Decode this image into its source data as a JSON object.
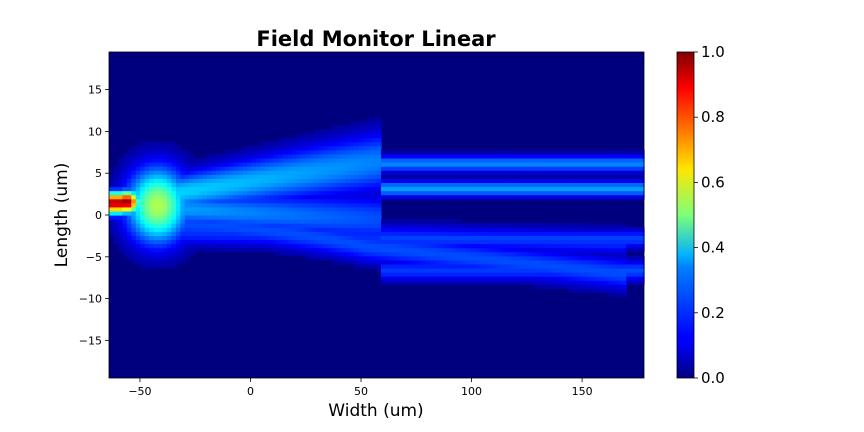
{
  "chart_data": {
    "type": "heatmap",
    "title": "Field Monitor Linear",
    "xlabel": "Width (um)",
    "ylabel": "Length (um)",
    "xlim": [
      -64,
      178
    ],
    "ylim": [
      -19.5,
      19.5
    ],
    "xticks": [
      -50,
      0,
      50,
      100,
      150
    ],
    "xtick_labels": [
      "−50",
      "0",
      "50",
      "100",
      "150"
    ],
    "yticks": [
      15,
      10,
      5,
      0,
      -5,
      -10,
      -15
    ],
    "ytick_labels": [
      "15",
      "10",
      "5",
      "0",
      "−5",
      "−10",
      "−15"
    ],
    "colorbar": {
      "colormap": "jet",
      "range": [
        0.0,
        1.0
      ],
      "ticks": [
        0.0,
        0.2,
        0.4,
        0.6,
        0.8,
        1.0
      ],
      "tick_labels": [
        "0.0",
        "0.2",
        "0.4",
        "0.6",
        "0.8",
        "1.0"
      ]
    },
    "grid": false,
    "field_description_values": {
      "input_peak": {
        "x": -56,
        "y": 1.5,
        "value": 1.0
      },
      "upper_branches_after_x60": [
        {
          "y": 6.2,
          "value": 0.25
        },
        {
          "y": 3.2,
          "value": 0.28
        }
      ],
      "lower_branches": [
        {
          "y": -2.8,
          "value": 0.18
        },
        {
          "y": -7.0,
          "value": 0.2
        }
      ]
    }
  }
}
